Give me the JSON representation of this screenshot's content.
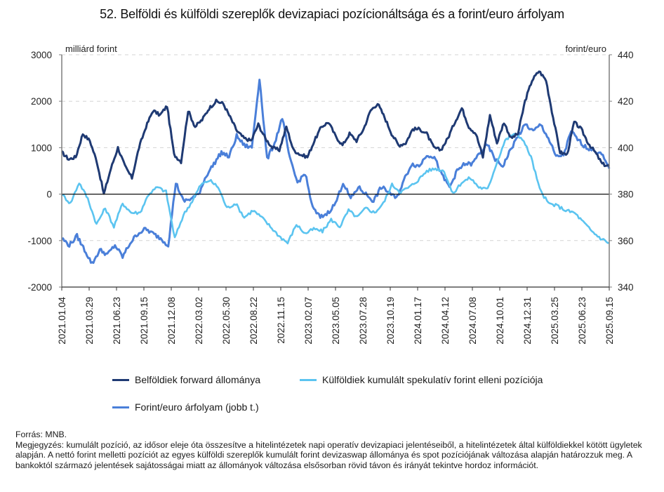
{
  "chart_data": {
    "type": "line",
    "title": "52. Belföldi és külföldi szereplők devizapiaci pozícionáltsága és a forint/euro árfolyam",
    "left_axis": {
      "label": "milliárd forint",
      "ylim": [
        -2000,
        3000
      ],
      "ticks": [
        3000,
        2000,
        1000,
        0,
        -1000,
        -2000
      ]
    },
    "right_axis": {
      "label": "forint/euro",
      "ylim": [
        340,
        440
      ],
      "ticks": [
        440,
        420,
        400,
        380,
        360,
        340
      ]
    },
    "x_tick_labels": [
      "2021.01.04",
      "2021.03.29",
      "2021.06.23",
      "2021.09.15",
      "2021.12.08",
      "2022.03.02",
      "2022.05.30",
      "2022.08.22",
      "2022.11.15",
      "2023.02.07",
      "2023.05.05",
      "2023.07.28",
      "2023.10.19",
      "2024.01.17",
      "2024.04.12",
      "2024.07.08",
      "2024.10.01",
      "2024.12.31",
      "2025.03.25",
      "2025.06.23",
      "2025.09.15"
    ],
    "grid": "horizontal dashed",
    "legend_position": "bottom",
    "series": [
      {
        "name": "Belföldiek forward állománya",
        "axis": "left",
        "color": "#1f3a73",
        "values": [
          900,
          750,
          800,
          1300,
          1150,
          700,
          0,
          550,
          1000,
          600,
          350,
          1000,
          1450,
          1800,
          1700,
          1900,
          850,
          700,
          1800,
          1450,
          1600,
          1850,
          2000,
          1950,
          1650,
          1350,
          1200,
          1150,
          1500,
          1200,
          1000,
          950,
          1450,
          950,
          850,
          800,
          1150,
          1450,
          1550,
          1250,
          1050,
          1300,
          1150,
          1400,
          1800,
          1950,
          1650,
          1300,
          1050,
          1100,
          1400,
          1400,
          1300,
          1000,
          950,
          1200,
          1550,
          1850,
          1450,
          1300,
          800,
          1700,
          1100,
          1550,
          1200,
          1300,
          2000,
          2450,
          2650,
          2450,
          1650,
          900,
          850,
          1550,
          1400,
          1100,
          900,
          650,
          600
        ]
      },
      {
        "name": "Külföldiek kumulált spekulatív forint elleni pozíciója",
        "axis": "left",
        "color": "#5bc4f0",
        "values": [
          0,
          -200,
          250,
          -100,
          -650,
          -300,
          -700,
          -200,
          -400,
          -400,
          0,
          150,
          50,
          -950,
          -450,
          -150,
          200,
          300,
          150,
          -300,
          -200,
          -500,
          -350,
          -500,
          -700,
          -900,
          -1050,
          -650,
          -850,
          -750,
          -800,
          -550,
          -700,
          -350,
          -500,
          -300,
          -400,
          -200,
          200,
          50,
          150,
          300,
          500,
          550,
          500,
          0,
          250,
          350,
          150,
          100,
          650,
          1150,
          1300,
          1200,
          800,
          100,
          -200,
          -250,
          -350,
          -400,
          -600,
          -800,
          -950,
          -1050
        ]
      },
      {
        "name": "Forint/euro árfolyam (jobb t.)",
        "axis": "right",
        "color": "#4a7fd9",
        "values": [
          361,
          358,
          362,
          356,
          350,
          356,
          354,
          358,
          353,
          359,
          363,
          365,
          363,
          361,
          358,
          385,
          377,
          378,
          380,
          388,
          393,
          398,
          396,
          405,
          401,
          400,
          430,
          395,
          402,
          413,
          395,
          385,
          389,
          374,
          370,
          372,
          376,
          385,
          378,
          383,
          380,
          377,
          383,
          381,
          378,
          386,
          393,
          392,
          397,
          396,
          388,
          383,
          390,
          393,
          393,
          398,
          401,
          395,
          392,
          399,
          405,
          410,
          407,
          410,
          404,
          396,
          397,
          407,
          403,
          400,
          399,
          397,
          391
        ]
      }
    ]
  },
  "legend": {
    "items": [
      {
        "label": "Belföldiek forward állománya",
        "color": "#1f3a73"
      },
      {
        "label": "Külföldiek kumulált spekulatív forint elleni pozíciója",
        "color": "#5bc4f0"
      },
      {
        "label": "Forint/euro árfolyam (jobb t.)",
        "color": "#4a7fd9"
      }
    ]
  },
  "footer": {
    "source": "Forrás: MNB.",
    "note": "Megjegyzés: kumulált pozíció, az idősor eleje óta összesítve a hitelintézetek napi operatív devizapiaci jelentéseiből, a hitelintézetek által külföldiekkel kötött ügyletek alapján. A nettó forint melletti pozíciót az egyes külföldi szereplők kumulált forint devizaswap állománya és spot pozíciójának változása alapján határozzuk meg. A bankoktól származó jelentések sajátosságai miatt az állományok változása elsősorban rövid távon és irányát tekintve hordoz információt."
  }
}
